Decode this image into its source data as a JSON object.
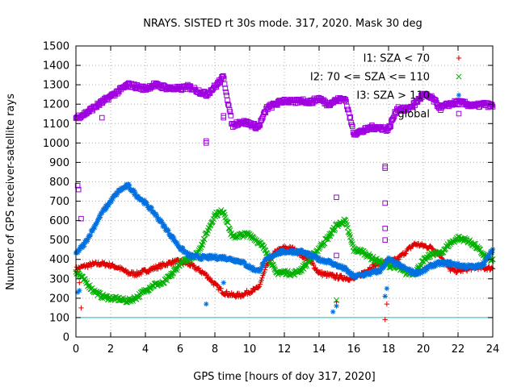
{
  "chart_data": {
    "type": "scatter",
    "title": "NRAYS. SISTED rt 30s mode. 317, 2020. Mask 30 deg",
    "xlabel": "GPS time [hours of doy 317, 2020]",
    "ylabel": "Number of GPS receiver-satellite rays",
    "xlim": [
      0,
      24
    ],
    "ylim": [
      0,
      1500
    ],
    "xticks": [
      0,
      2,
      4,
      6,
      8,
      10,
      12,
      14,
      16,
      18,
      20,
      22,
      24
    ],
    "yticks": [
      0,
      100,
      200,
      300,
      400,
      500,
      600,
      700,
      800,
      900,
      1000,
      1100,
      1200,
      1300,
      1400,
      1500
    ],
    "grid": true,
    "legend_position": "top-right",
    "reference_line": {
      "y": 100,
      "color": "#00c8c8"
    },
    "series": [
      {
        "name": "I1: SZA < 70",
        "marker": "plus",
        "color": "#e00000",
        "x": [
          0,
          0.5,
          1,
          1.5,
          2,
          2.5,
          3,
          3.5,
          4,
          4.5,
          5,
          5.5,
          6,
          6.5,
          7,
          7.5,
          8,
          8.5,
          9,
          9.5,
          10,
          10.5,
          11,
          11.5,
          12,
          12.5,
          13,
          13.5,
          14,
          14.5,
          15,
          15.5,
          16,
          16.5,
          17,
          17.5,
          18,
          18.5,
          19,
          19.5,
          20,
          20.5,
          21,
          21.5,
          22,
          22.5,
          23,
          23.5,
          24
        ],
        "values": [
          350,
          365,
          375,
          378,
          370,
          355,
          330,
          325,
          340,
          355,
          370,
          385,
          390,
          375,
          350,
          320,
          270,
          230,
          215,
          215,
          235,
          250,
          370,
          440,
          460,
          455,
          420,
          390,
          330,
          320,
          310,
          305,
          300,
          330,
          360,
          380,
          385,
          400,
          440,
          480,
          470,
          460,
          420,
          350,
          340,
          350,
          360,
          355,
          355
        ],
        "outliers": [
          [
            0.2,
            280
          ],
          [
            0.3,
            150
          ],
          [
            15,
            180
          ],
          [
            17.8,
            90
          ],
          [
            17.9,
            170
          ]
        ]
      },
      {
        "name": "I2: 70 <= SZA <= 110",
        "marker": "cross",
        "color": "#00b000",
        "x": [
          0,
          0.5,
          1,
          1.5,
          2,
          2.5,
          3,
          3.5,
          4,
          4.5,
          5,
          5.5,
          6,
          6.5,
          7,
          7.5,
          8,
          8.5,
          9,
          9.5,
          10,
          10.5,
          11,
          11.5,
          12,
          12.5,
          13,
          13.5,
          14,
          14.5,
          15,
          15.5,
          16,
          16.5,
          17,
          17.5,
          18,
          18.5,
          19,
          19.5,
          20,
          20.5,
          21,
          21.5,
          22,
          22.5,
          23,
          23.5,
          24
        ],
        "values": [
          340,
          290,
          240,
          210,
          200,
          195,
          185,
          205,
          240,
          270,
          275,
          320,
          380,
          400,
          430,
          530,
          630,
          650,
          515,
          525,
          530,
          490,
          440,
          330,
          335,
          325,
          350,
          400,
          460,
          510,
          575,
          600,
          450,
          440,
          410,
          385,
          370,
          360,
          330,
          330,
          390,
          430,
          430,
          480,
          510,
          500,
          470,
          420,
          390
        ],
        "outliers": [
          [
            15,
            190
          ]
        ]
      },
      {
        "name": "I3: SZA > 110",
        "marker": "star",
        "color": "#0070e0",
        "x": [
          0,
          0.5,
          1,
          1.5,
          2,
          2.5,
          3,
          3.5,
          4,
          4.5,
          5,
          5.5,
          6,
          6.5,
          7,
          7.5,
          8,
          8.5,
          9,
          9.5,
          10,
          10.5,
          11,
          11.5,
          12,
          12.5,
          13,
          13.5,
          14,
          14.5,
          15,
          15.5,
          16,
          16.5,
          17,
          17.5,
          18,
          18.5,
          19,
          19.5,
          20,
          20.5,
          21,
          21.5,
          22,
          22.5,
          23,
          23.5,
          24
        ],
        "values": [
          430,
          480,
          560,
          640,
          700,
          755,
          780,
          730,
          690,
          640,
          580,
          520,
          460,
          420,
          410,
          410,
          410,
          410,
          400,
          390,
          360,
          340,
          400,
          430,
          440,
          440,
          440,
          420,
          400,
          390,
          370,
          350,
          310,
          320,
          330,
          340,
          400,
          375,
          350,
          330,
          340,
          370,
          380,
          380,
          370,
          365,
          360,
          380,
          450
        ],
        "outliers": [
          [
            0.1,
            230
          ],
          [
            0.2,
            240
          ],
          [
            7.5,
            170
          ],
          [
            8.5,
            280
          ],
          [
            14.8,
            130
          ],
          [
            15,
            160
          ],
          [
            17.8,
            210
          ],
          [
            17.9,
            250
          ]
        ]
      },
      {
        "name": "global",
        "marker": "square",
        "color": "#a000e0",
        "x": [
          0,
          0.5,
          1,
          1.5,
          2,
          2.5,
          3,
          3.5,
          4,
          4.5,
          5,
          5.5,
          6,
          6.5,
          7,
          7.5,
          8,
          8.5,
          9,
          9.5,
          10,
          10.5,
          11,
          11.5,
          12,
          12.5,
          13,
          13.5,
          14,
          14.5,
          15,
          15.5,
          16,
          16.5,
          17,
          17.5,
          18,
          18.5,
          19,
          19.5,
          20,
          20.5,
          21,
          21.5,
          22,
          22.5,
          23,
          23.5,
          24
        ],
        "values": [
          1130,
          1150,
          1180,
          1210,
          1240,
          1270,
          1300,
          1290,
          1280,
          1300,
          1290,
          1280,
          1280,
          1290,
          1270,
          1250,
          1290,
          1340,
          1090,
          1110,
          1100,
          1080,
          1180,
          1200,
          1220,
          1210,
          1220,
          1210,
          1230,
          1200,
          1220,
          1230,
          1050,
          1060,
          1080,
          1080,
          1070,
          1180,
          1170,
          1200,
          1250,
          1230,
          1180,
          1200,
          1210,
          1200,
          1190,
          1200,
          1190
        ],
        "outliers": [
          [
            0.1,
            780
          ],
          [
            0.15,
            760
          ],
          [
            0.3,
            610
          ],
          [
            1.5,
            1130
          ],
          [
            7.5,
            1000
          ],
          [
            7.5,
            1010
          ],
          [
            8.5,
            1130
          ],
          [
            8.5,
            1140
          ],
          [
            15,
            720
          ],
          [
            15,
            420
          ],
          [
            17.8,
            870
          ],
          [
            17.8,
            690
          ],
          [
            17.8,
            560
          ],
          [
            17.8,
            500
          ],
          [
            17.8,
            880
          ]
        ]
      }
    ]
  }
}
